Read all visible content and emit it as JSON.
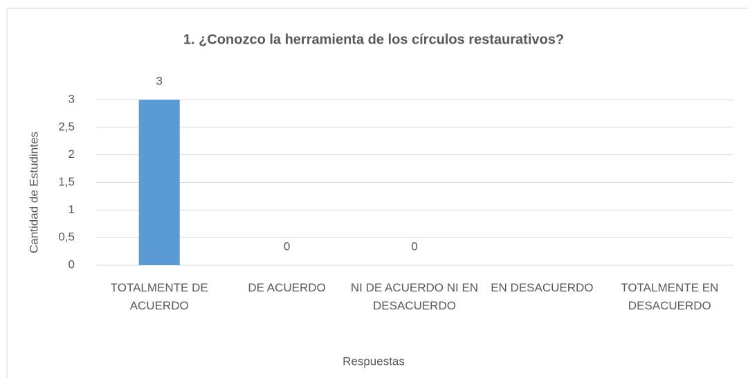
{
  "chart_data": {
    "type": "bar",
    "title": "1. ¿Conozco la herramienta de los círculos restaurativos?",
    "categories": [
      "TOTALMENTE DE ACUERDO",
      "DE ACUERDO",
      "NI DE ACUERDO NI EN DESACUERDO",
      "EN DESACUERDO",
      "TOTALMENTE EN DESACUERDO"
    ],
    "values": [
      3,
      0,
      0,
      null,
      null
    ],
    "color": "#5b9bd5",
    "ylim": [
      0,
      3
    ],
    "yticks": [
      0,
      {
        "value": 0.5,
        "label": "0,5"
      },
      1,
      {
        "value": 1.5,
        "label": "1,5"
      },
      2,
      {
        "value": 2.5,
        "label": "2,5"
      },
      3
    ],
    "grid": true,
    "x_label": "Respuestas",
    "y_label": "Cantidad de Estudintes"
  }
}
